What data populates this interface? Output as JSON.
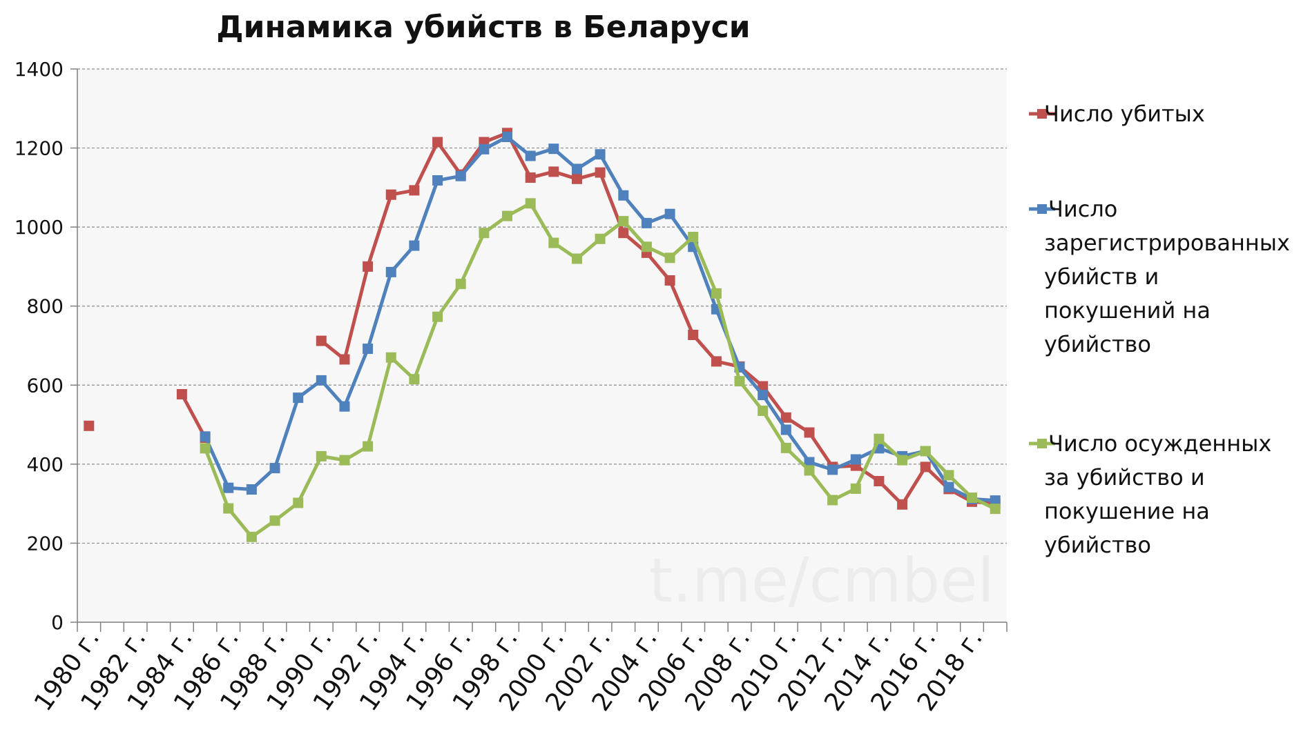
{
  "chart_data": {
    "type": "line",
    "title": "Динамика убийств в Беларуси",
    "watermark": "t.me/cmbel",
    "x": [
      "1980 г.",
      "1981 г.",
      "1982 г.",
      "1983 г.",
      "1984 г.",
      "1985 г.",
      "1986 г.",
      "1987 г.",
      "1988 г.",
      "1989 г.",
      "1990 г.",
      "1991 г.",
      "1992 г.",
      "1993 г.",
      "1994 г.",
      "1995 г.",
      "1996 г.",
      "1997 г.",
      "1998 г.",
      "1999 г.",
      "2000 г.",
      "2001 г.",
      "2002 г.",
      "2003 г.",
      "2004 г.",
      "2005 г.",
      "2006 г.",
      "2007 г.",
      "2008 г.",
      "2009 г.",
      "2010 г.",
      "2011 г.",
      "2012 г.",
      "2013 г.",
      "2014 г.",
      "2015 г.",
      "2016 г.",
      "2017 г.",
      "2018 г.",
      "2019 г."
    ],
    "x_tick_labels": [
      "1980 г.",
      "1982 г.",
      "1984 г.",
      "1986 г.",
      "1988 г.",
      "1990 г.",
      "1992 г.",
      "1994 г.",
      "1996 г.",
      "1998 г.",
      "2000 г.",
      "2002 г.",
      "2004 г.",
      "2006 г.",
      "2008 г.",
      "2010 г.",
      "2012 г.",
      "2014 г.",
      "2016 г.",
      "2018 г."
    ],
    "ylim": [
      0,
      1400
    ],
    "y_ticks": [
      0,
      200,
      400,
      600,
      800,
      1000,
      1200,
      1400
    ],
    "grid": true,
    "legend_position": "right",
    "series": [
      {
        "name": "Число убитых",
        "color": "#c0504d",
        "values": [
          497,
          null,
          null,
          null,
          577,
          467,
          null,
          null,
          null,
          null,
          712,
          665,
          900,
          1082,
          1093,
          1215,
          1133,
          1215,
          1238,
          1125,
          1140,
          1122,
          1138,
          985,
          935,
          865,
          727,
          660,
          647,
          597,
          518,
          480,
          393,
          396,
          357,
          298,
          393,
          337,
          305,
          300
        ]
      },
      {
        "name": "Число зарегистрированных убийств и покушений на убийство",
        "color": "#4f81bd",
        "values": [
          null,
          null,
          null,
          null,
          null,
          470,
          340,
          336,
          390,
          568,
          612,
          546,
          692,
          886,
          953,
          1118,
          1129,
          1197,
          1228,
          1180,
          1198,
          1147,
          1184,
          1080,
          1010,
          1033,
          950,
          792,
          645,
          575,
          487,
          405,
          386,
          412,
          440,
          420,
          433,
          342,
          312,
          308
        ]
      },
      {
        "name": "Число осужденных за убийство и покушение на убийство",
        "color": "#9bbb59",
        "values": [
          null,
          null,
          null,
          null,
          null,
          440,
          288,
          216,
          257,
          302,
          420,
          410,
          445,
          670,
          615,
          773,
          856,
          985,
          1028,
          1060,
          960,
          920,
          970,
          1015,
          950,
          922,
          975,
          832,
          610,
          535,
          441,
          384,
          309,
          338,
          464,
          410,
          433,
          372,
          315,
          287
        ]
      }
    ]
  }
}
